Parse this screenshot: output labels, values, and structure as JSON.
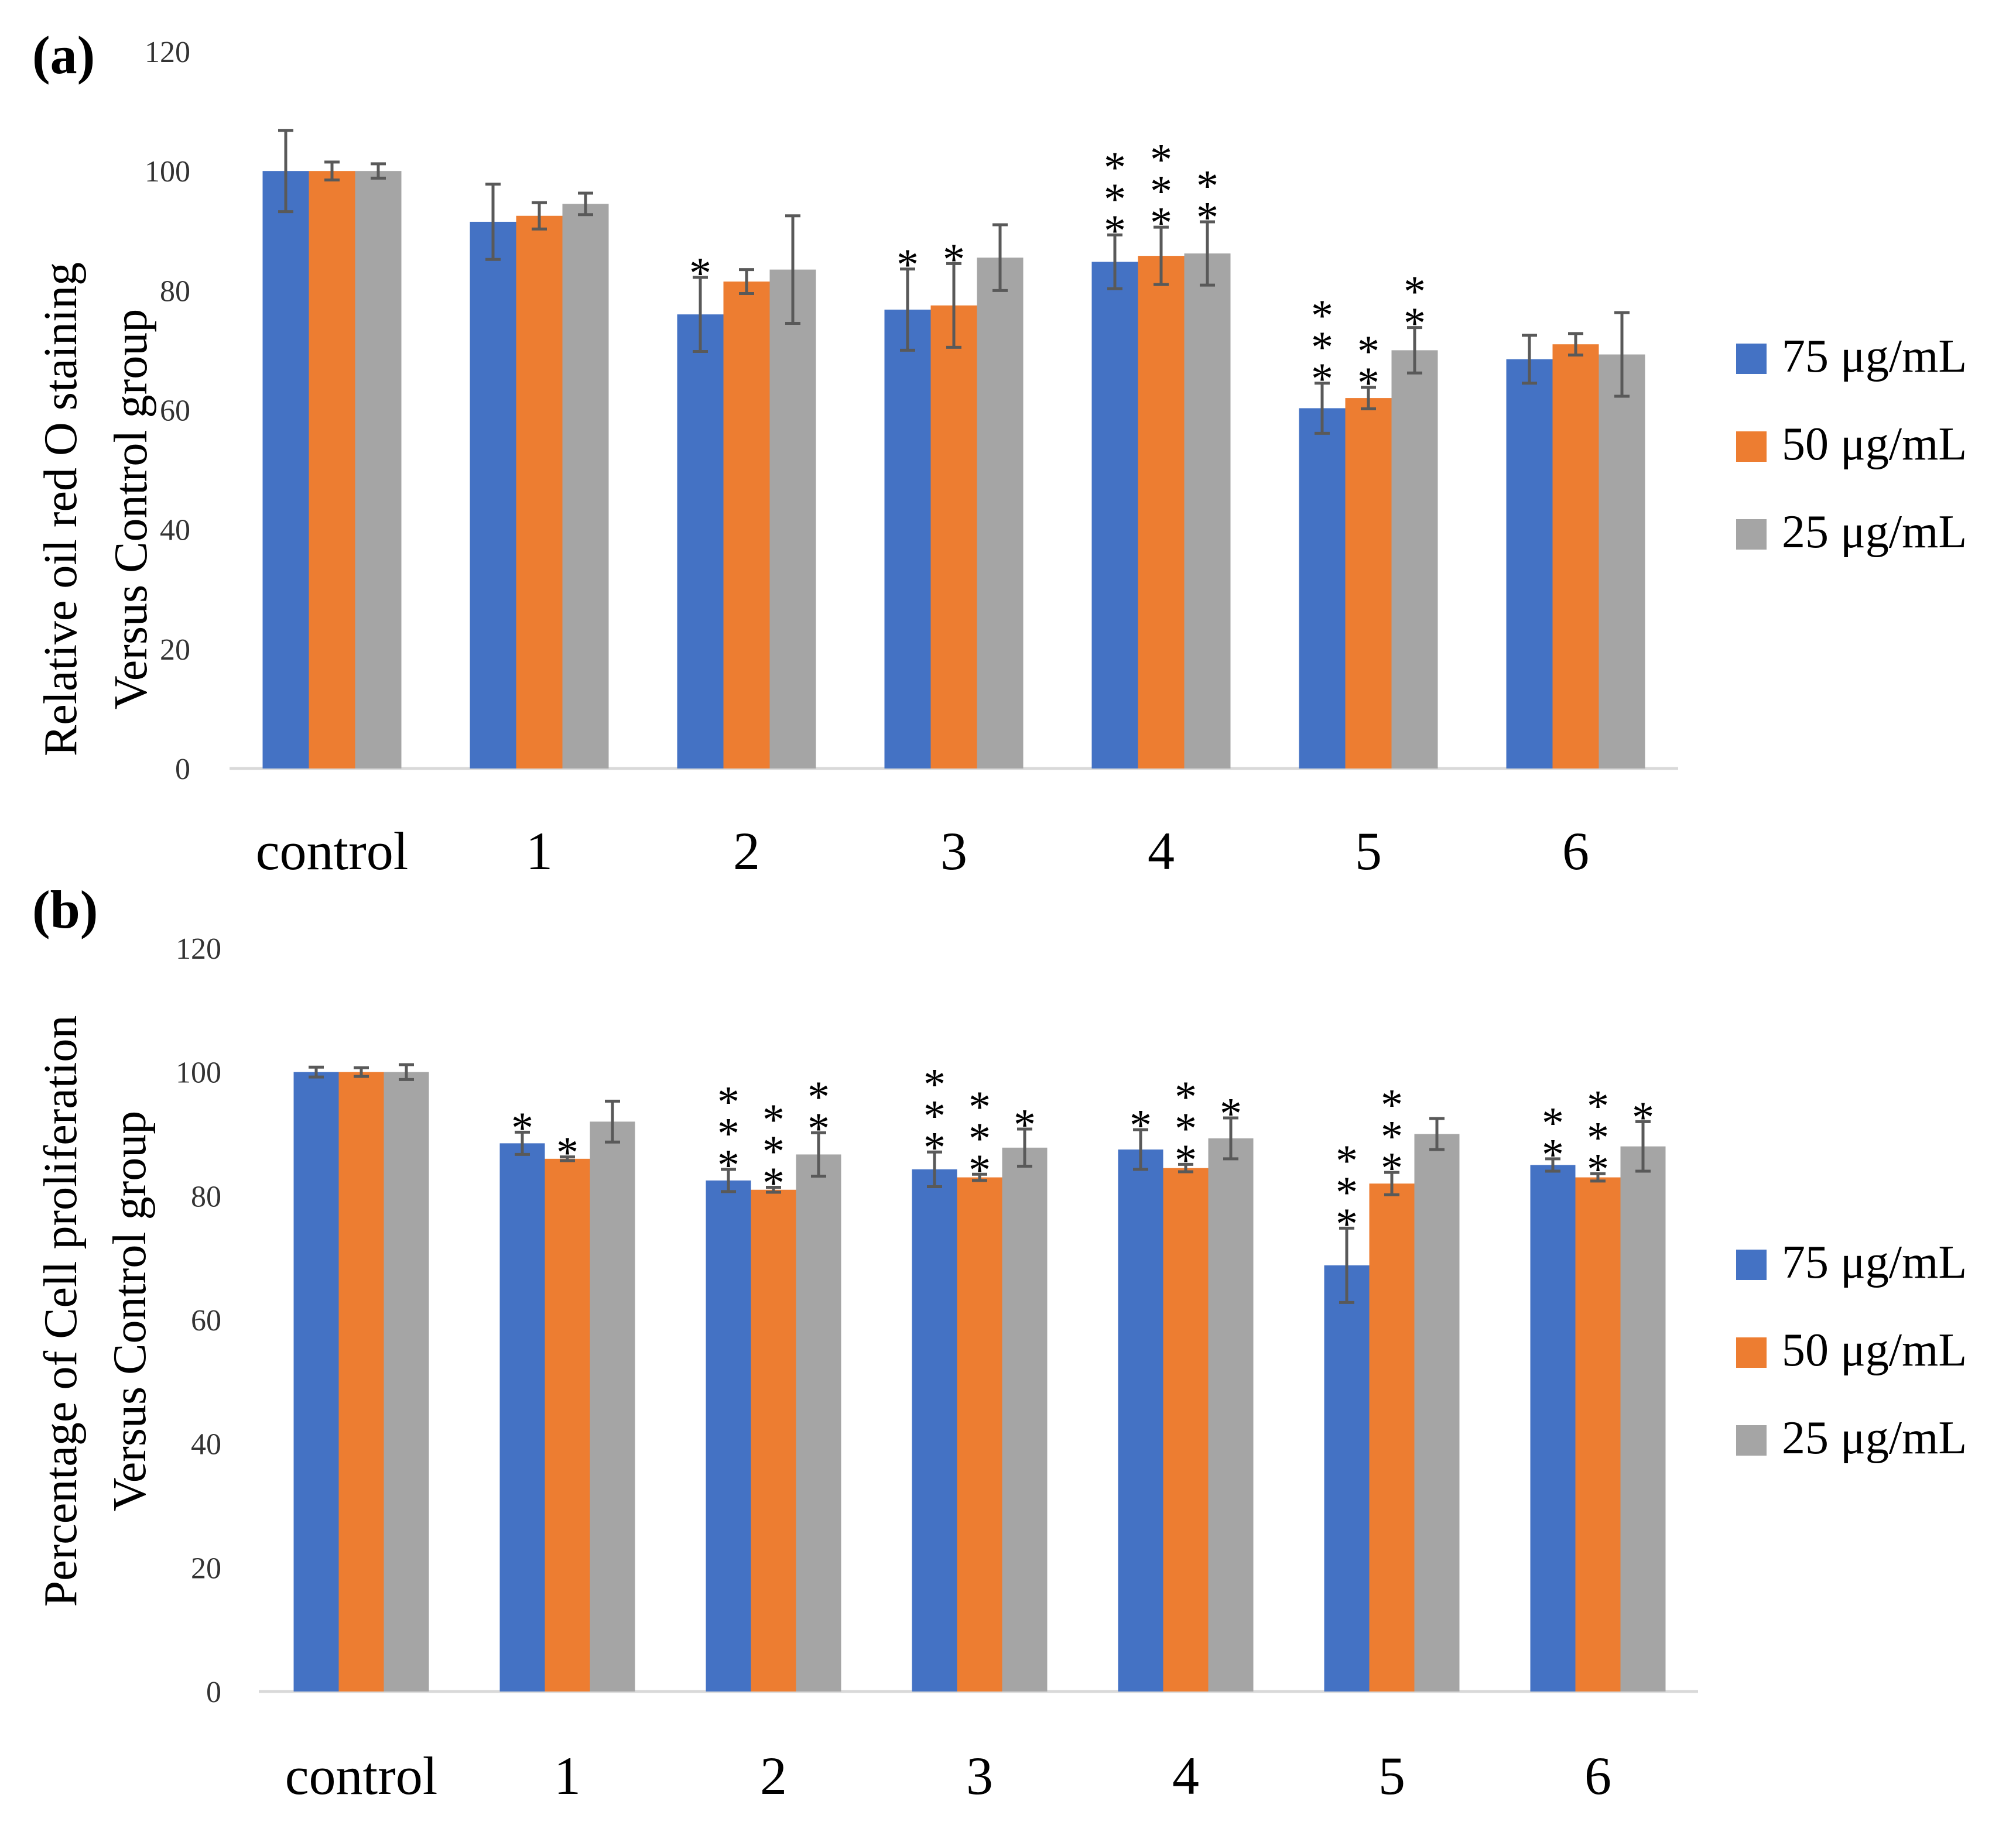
{
  "chart_data": [
    {
      "type": "bar",
      "panel_label": "(a)",
      "title": "",
      "xlabel": "",
      "ylabel_lines": [
        "Relative oil red O staining",
        "Versus Control group"
      ],
      "ylim": [
        0,
        120
      ],
      "yticks": [
        "0",
        "20",
        "40",
        "60",
        "80",
        "100",
        "120"
      ],
      "categories": [
        "control",
        "1",
        "2",
        "3",
        "4",
        "5",
        "6"
      ],
      "legend_position": "right",
      "series": [
        {
          "name": "75 μg/mL",
          "color": "#4472C4",
          "values": [
            100,
            91.5,
            76,
            76.8,
            84.8,
            60.3,
            68.5
          ],
          "errors": [
            6.8,
            6.3,
            6.2,
            6.8,
            4.5,
            4.2,
            4.0
          ],
          "significance": [
            "",
            "",
            "*",
            "*",
            "***",
            "***",
            ""
          ]
        },
        {
          "name": "50 μg/mL",
          "color": "#ED7D31",
          "values": [
            100,
            92.5,
            81.5,
            77.5,
            85.8,
            62,
            71
          ],
          "errors": [
            1.5,
            2.2,
            2.0,
            7.0,
            4.8,
            1.8,
            1.8
          ],
          "significance": [
            "",
            "",
            "",
            "*",
            "***",
            "**",
            ""
          ]
        },
        {
          "name": "25 μg/mL",
          "color": "#A5A5A5",
          "values": [
            100,
            94.5,
            83.5,
            85.5,
            86.2,
            70,
            69.3
          ],
          "errors": [
            1.2,
            1.8,
            9.0,
            5.5,
            5.3,
            3.8,
            7.0
          ],
          "significance": [
            "",
            "",
            "",
            "",
            "**",
            "**",
            ""
          ]
        }
      ]
    },
    {
      "type": "bar",
      "panel_label": "(b)",
      "title": "",
      "xlabel": "",
      "ylabel_lines": [
        "Percentage of Cell proliferation",
        "Versus Control group"
      ],
      "ylim": [
        0,
        120
      ],
      "yticks": [
        "0",
        "20",
        "40",
        "60",
        "80",
        "100",
        "120"
      ],
      "categories": [
        "control",
        "1",
        "2",
        "3",
        "4",
        "5",
        "6"
      ],
      "legend_position": "right",
      "series": [
        {
          "name": "75 μg/mL",
          "color": "#4472C4",
          "values": [
            100,
            88.5,
            82.5,
            84.3,
            87.5,
            68.8,
            85
          ],
          "errors": [
            0.8,
            1.8,
            1.8,
            2.8,
            3.2,
            6.0,
            1.0
          ],
          "significance": [
            "",
            "*",
            "***",
            "***",
            "*",
            "***",
            "**"
          ]
        },
        {
          "name": "50 μg/mL",
          "color": "#ED7D31",
          "values": [
            100,
            86,
            81,
            83,
            84.5,
            82,
            83
          ],
          "errors": [
            0.7,
            0.3,
            0.4,
            0.5,
            0.6,
            1.8,
            0.6
          ],
          "significance": [
            "",
            "*",
            "***",
            "***",
            "***",
            "***",
            "***"
          ]
        },
        {
          "name": "25 μg/mL",
          "color": "#A5A5A5",
          "values": [
            100,
            92,
            86.7,
            87.8,
            89.3,
            90,
            88
          ],
          "errors": [
            1.2,
            3.3,
            3.5,
            3.0,
            3.3,
            2.5,
            4.0
          ],
          "significance": [
            "",
            "",
            "**",
            "*",
            "*",
            "",
            "*"
          ]
        }
      ]
    }
  ]
}
